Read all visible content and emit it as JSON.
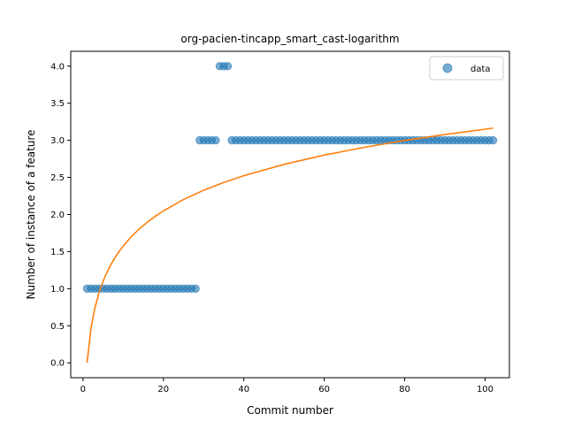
{
  "chart_data": {
    "type": "scatter",
    "title": "org-pacien-tincapp_smart_cast-logarithm",
    "xlabel": "Commit number",
    "ylabel": "Number of instance of a feature",
    "xlim": [
      -3.05,
      106.05
    ],
    "ylim": [
      -0.2,
      4.2
    ],
    "xticks": [
      0,
      20,
      40,
      60,
      80,
      100
    ],
    "yticks": [
      0.0,
      0.5,
      1.0,
      1.5,
      2.0,
      2.5,
      3.0,
      3.5,
      4.0
    ],
    "xtick_labels": [
      "0",
      "20",
      "40",
      "60",
      "80",
      "100"
    ],
    "ytick_labels": [
      "0.0",
      "0.5",
      "1.0",
      "1.5",
      "2.0",
      "2.5",
      "3.0",
      "3.5",
      "4.0"
    ],
    "grid": false,
    "legend_position": "top-right",
    "series": [
      {
        "name": "data",
        "kind": "scatter",
        "color": "#1f77b4",
        "x": [
          1,
          2,
          3,
          4,
          5,
          6,
          7,
          8,
          9,
          10,
          11,
          12,
          13,
          14,
          15,
          16,
          17,
          18,
          19,
          20,
          21,
          22,
          23,
          24,
          25,
          26,
          27,
          28,
          29,
          30,
          31,
          32,
          33,
          34,
          35,
          36,
          37,
          38,
          39,
          40,
          41,
          42,
          43,
          44,
          45,
          46,
          47,
          48,
          49,
          50,
          51,
          52,
          53,
          54,
          55,
          56,
          57,
          58,
          59,
          60,
          61,
          62,
          63,
          64,
          65,
          66,
          67,
          68,
          69,
          70,
          71,
          72,
          73,
          74,
          75,
          76,
          77,
          78,
          79,
          80,
          81,
          82,
          83,
          84,
          85,
          86,
          87,
          88,
          89,
          90,
          91,
          92,
          93,
          94,
          95,
          96,
          97,
          98,
          99,
          100,
          101,
          102
        ],
        "y": [
          1,
          1,
          1,
          1,
          1,
          1,
          1,
          1,
          1,
          1,
          1,
          1,
          1,
          1,
          1,
          1,
          1,
          1,
          1,
          1,
          1,
          1,
          1,
          1,
          1,
          1,
          1,
          1,
          3,
          3,
          3,
          3,
          3,
          4,
          4,
          4,
          3,
          3,
          3,
          3,
          3,
          3,
          3,
          3,
          3,
          3,
          3,
          3,
          3,
          3,
          3,
          3,
          3,
          3,
          3,
          3,
          3,
          3,
          3,
          3,
          3,
          3,
          3,
          3,
          3,
          3,
          3,
          3,
          3,
          3,
          3,
          3,
          3,
          3,
          3,
          3,
          3,
          3,
          3,
          3,
          3,
          3,
          3,
          3,
          3,
          3,
          3,
          3,
          3,
          3,
          3,
          3,
          3,
          3,
          3,
          3,
          3,
          3,
          3,
          3,
          3,
          3
        ]
      },
      {
        "kind": "line",
        "color": "#ff7f0e",
        "x": [
          1,
          2,
          3,
          4,
          5,
          6,
          7,
          8,
          9,
          10,
          12,
          14,
          16,
          18,
          20,
          25,
          30,
          35,
          40,
          50,
          60,
          70,
          80,
          90,
          102
        ],
        "y": [
          0.0,
          0.474,
          0.751,
          0.948,
          1.101,
          1.226,
          1.331,
          1.422,
          1.503,
          1.575,
          1.7,
          1.805,
          1.897,
          1.977,
          2.049,
          2.202,
          2.327,
          2.432,
          2.523,
          2.676,
          2.801,
          2.906,
          2.998,
          3.078,
          3.164
        ]
      }
    ]
  }
}
